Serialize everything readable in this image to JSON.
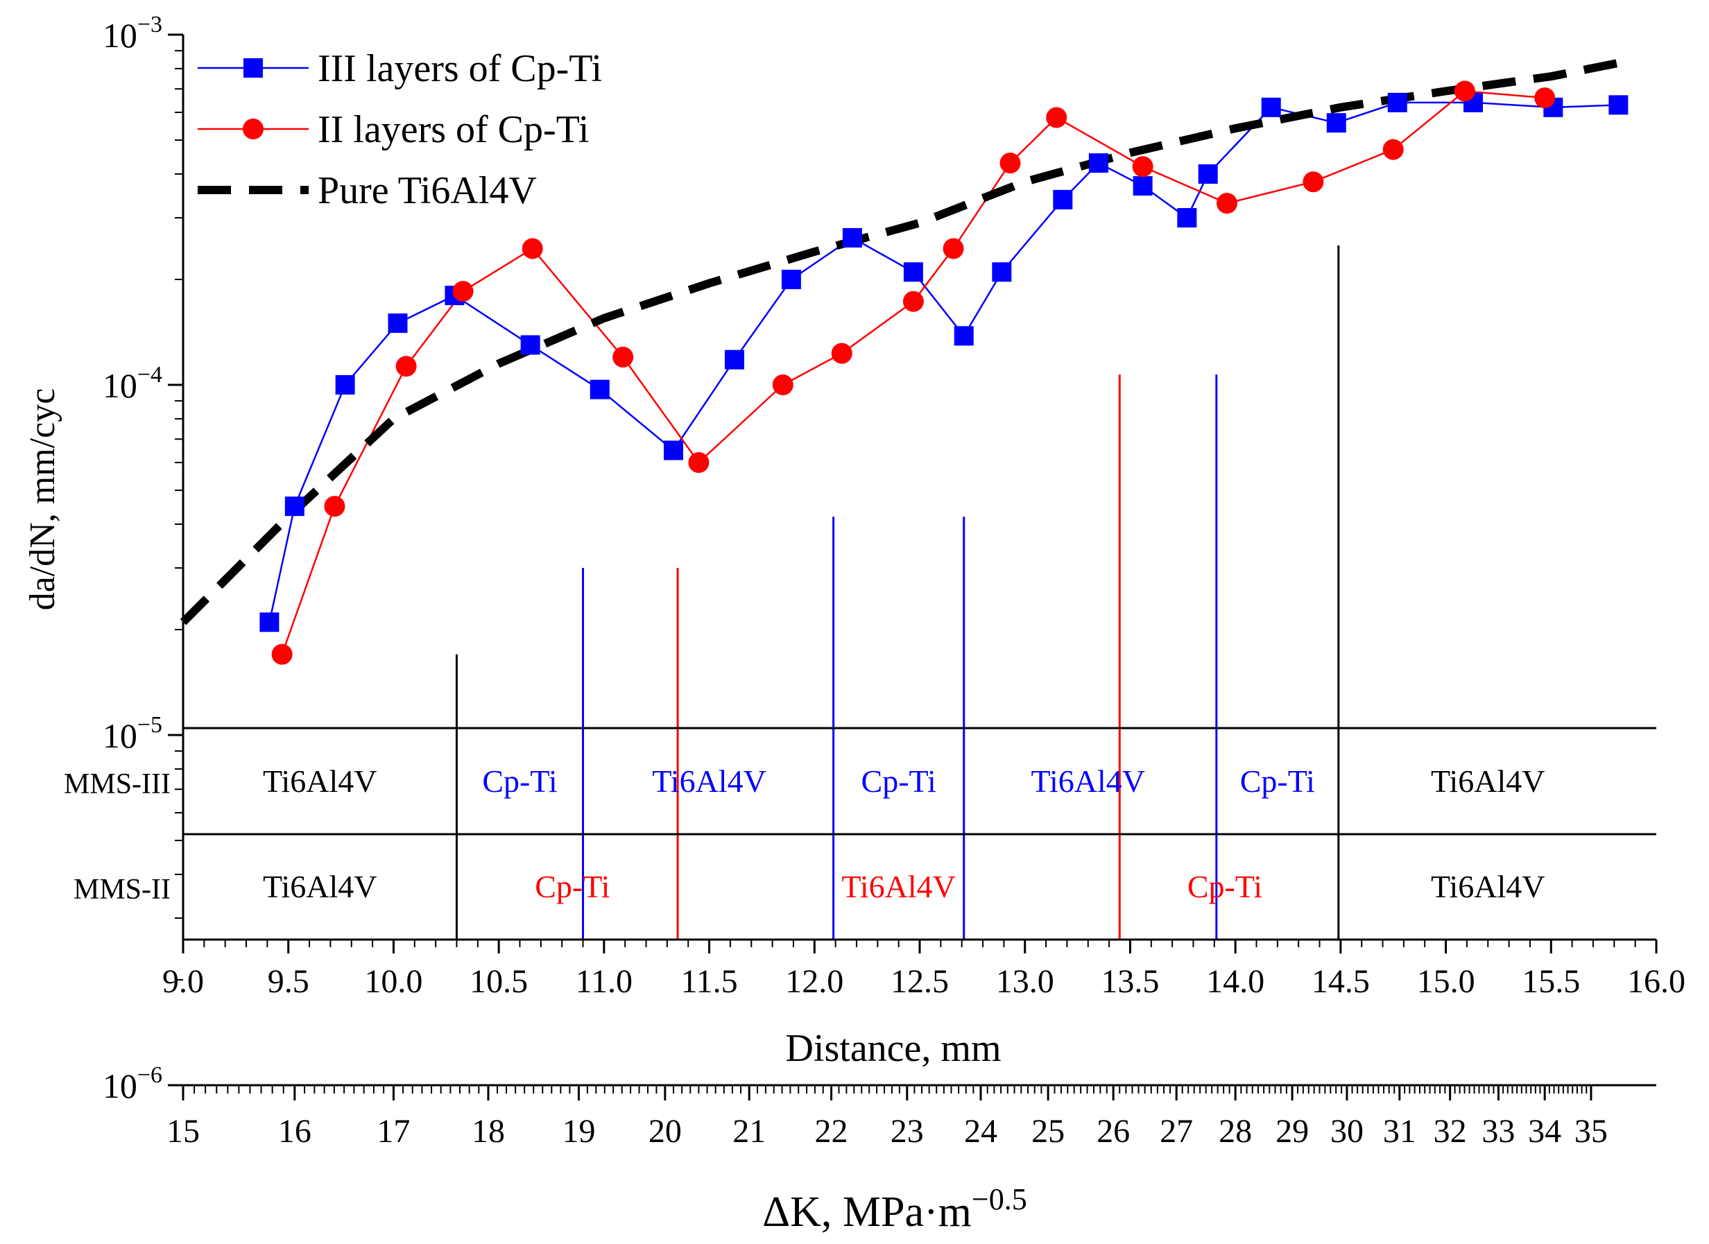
{
  "chart_data": {
    "type": "line",
    "y_scale": "log",
    "ylim": [
      1e-06,
      0.001
    ],
    "ylabel": "da/dN, mm/cyc",
    "y_ticks": [
      {
        "value": 0.001,
        "base": "10",
        "exp": "−3"
      },
      {
        "value": 0.0001,
        "base": "10",
        "exp": "−4"
      },
      {
        "value": 1e-05,
        "base": "10",
        "exp": "−5"
      },
      {
        "value": 1e-06,
        "base": "10",
        "exp": "−6"
      }
    ],
    "x_distance": {
      "label": "Distance, mm",
      "range": [
        9.0,
        16.0
      ],
      "ticks": [
        "9.0",
        "9.5",
        "10.0",
        "10.5",
        "11.0",
        "11.5",
        "12.0",
        "12.5",
        "13.0",
        "13.5",
        "14.0",
        "14.5",
        "15.0",
        "15.5",
        "16.0"
      ]
    },
    "x_deltaK": {
      "label_main": "ΔK, MPa·m",
      "label_exp": "−0.5",
      "ticks": [
        {
          "label": "15",
          "distance": 9.0
        },
        {
          "label": "16",
          "distance": 9.53
        },
        {
          "label": "17",
          "distance": 10.0
        },
        {
          "label": "18",
          "distance": 10.45
        },
        {
          "label": "19",
          "distance": 10.88
        },
        {
          "label": "20",
          "distance": 11.29
        },
        {
          "label": "21",
          "distance": 11.69
        },
        {
          "label": "22",
          "distance": 12.08
        },
        {
          "label": "23",
          "distance": 12.44
        },
        {
          "label": "24",
          "distance": 12.79
        },
        {
          "label": "25",
          "distance": 13.11
        },
        {
          "label": "26",
          "distance": 13.42
        },
        {
          "label": "27",
          "distance": 13.72
        },
        {
          "label": "28",
          "distance": 14.0
        },
        {
          "label": "29",
          "distance": 14.27
        },
        {
          "label": "30",
          "distance": 14.53
        },
        {
          "label": "31",
          "distance": 14.78
        },
        {
          "label": "32",
          "distance": 15.02
        },
        {
          "label": "33",
          "distance": 15.25
        },
        {
          "label": "34",
          "distance": 15.47
        },
        {
          "label": "35",
          "distance": 15.69
        }
      ]
    },
    "series": [
      {
        "name": "III layers of Cp-Ti",
        "color": "#0000ff",
        "marker": "square",
        "x": [
          9.41,
          9.53,
          9.77,
          10.02,
          10.29,
          10.65,
          10.98,
          11.33,
          11.62,
          11.89,
          12.18,
          12.47,
          12.71,
          12.89,
          13.18,
          13.35,
          13.56,
          13.77,
          13.87,
          14.17,
          14.48,
          14.77,
          15.13,
          15.51,
          15.82
        ],
        "y": [
          2.1e-05,
          4.5e-05,
          0.0001,
          0.00015,
          0.00018,
          0.00013,
          9.7e-05,
          6.5e-05,
          0.000118,
          0.0002,
          0.000263,
          0.00021,
          0.000138,
          0.00021,
          0.000338,
          0.00043,
          0.00037,
          0.0003,
          0.0004,
          0.00062,
          0.00056,
          0.00064,
          0.00064,
          0.00062,
          0.00063
        ]
      },
      {
        "name": "II layers of Cp-Ti",
        "color": "#ff0000",
        "marker": "circle",
        "x": [
          9.47,
          9.72,
          10.06,
          10.33,
          10.66,
          11.09,
          11.45,
          11.85,
          12.13,
          12.47,
          12.66,
          12.93,
          13.15,
          13.56,
          13.96,
          14.37,
          14.75,
          15.09,
          15.47
        ],
        "y": [
          1.7e-05,
          4.5e-05,
          0.000113,
          0.000185,
          0.000245,
          0.00012,
          6e-05,
          0.0001,
          0.000123,
          0.000173,
          0.000245,
          0.00043,
          0.00058,
          0.00042,
          0.00033,
          0.00038,
          0.00047,
          0.00069,
          0.00066
        ]
      },
      {
        "name": "Pure Ti6Al4V",
        "color": "#000000",
        "style": "dashed",
        "x": [
          9.0,
          9.5,
          10.0,
          10.5,
          11.0,
          11.5,
          12.0,
          12.5,
          13.0,
          13.5,
          14.0,
          14.5,
          15.0,
          15.5,
          15.82
        ],
        "y": [
          2.1e-05,
          4.2e-05,
          8e-05,
          0.000115,
          0.000155,
          0.000195,
          0.00024,
          0.00029,
          0.00038,
          0.00046,
          0.00054,
          0.00062,
          0.00069,
          0.00076,
          0.00083
        ]
      }
    ],
    "boundaries": [
      {
        "distance": 10.3,
        "color": "#000000",
        "top": 1.7e-05
      },
      {
        "distance": 10.9,
        "color": "#0000ff",
        "top": 3e-05
      },
      {
        "distance": 11.35,
        "color": "#ff0000",
        "top": 3e-05
      },
      {
        "distance": 12.09,
        "color": "#0000ff",
        "top": 4.2e-05
      },
      {
        "distance": 12.71,
        "color": "#0000ff",
        "top": 4.2e-05
      },
      {
        "distance": 13.45,
        "color": "#ff0000",
        "top": 0.000107
      },
      {
        "distance": 13.91,
        "color": "#0000ff",
        "top": 0.000107
      },
      {
        "distance": 14.49,
        "color": "#000000",
        "top": 0.00025
      }
    ],
    "bands": [
      {
        "name": "MMS-III",
        "segments": [
          {
            "label": "Ti6Al4V",
            "center": 9.65,
            "color": "#000000"
          },
          {
            "label": "Cp-Ti",
            "center": 10.6,
            "color": "#0000ff"
          },
          {
            "label": "Ti6Al4V",
            "center": 11.5,
            "color": "#0000ff"
          },
          {
            "label": "Cp-Ti",
            "center": 12.4,
            "color": "#0000ff"
          },
          {
            "label": "Ti6Al4V",
            "center": 13.3,
            "color": "#0000ff"
          },
          {
            "label": "Cp-Ti",
            "center": 14.2,
            "color": "#0000ff"
          },
          {
            "label": "Ti6Al4V",
            "center": 15.2,
            "color": "#000000"
          }
        ]
      },
      {
        "name": "MMS-II",
        "segments": [
          {
            "label": "Ti6Al4V",
            "center": 9.65,
            "color": "#000000"
          },
          {
            "label": "Cp-Ti",
            "center": 10.85,
            "color": "#ff0000"
          },
          {
            "label": "Ti6Al4V",
            "center": 12.4,
            "color": "#ff0000"
          },
          {
            "label": "Cp-Ti",
            "center": 13.95,
            "color": "#ff0000"
          },
          {
            "label": "Ti6Al4V",
            "center": 15.2,
            "color": "#000000"
          }
        ]
      }
    ],
    "legend_placement": "top-left"
  }
}
